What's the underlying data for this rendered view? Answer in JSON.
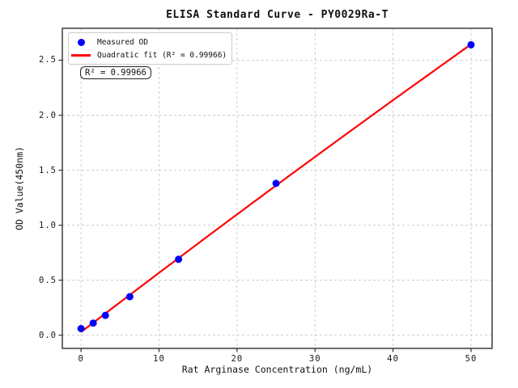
{
  "title": "ELISA Standard Curve - PY0029Ra-T",
  "axes": {
    "x_label": "Rat Arginase Concentration (ng/mL)",
    "y_label": "OD Value(450nm)",
    "x_tick_labels": [
      "0",
      "10",
      "20",
      "30",
      "40",
      "50"
    ],
    "y_tick_labels": [
      "0.0",
      "0.5",
      "1.0",
      "1.5",
      "2.0",
      "2.5"
    ]
  },
  "legend": {
    "items": [
      {
        "label": "Measured OD",
        "marker": "dot",
        "color": "#0000ff"
      },
      {
        "label": "Quadratic fit (R² = 0.99966)",
        "marker": "line",
        "color": "#ff0000"
      }
    ]
  },
  "annotation": {
    "r_squared_text": "R² = 0.99966"
  },
  "colors": {
    "point": "#0000ff",
    "fit_line": "#ff0000",
    "grid": "#c9c9c9",
    "spine": "#2e2e2e",
    "text": "#1a1a1a"
  },
  "chart_data": {
    "type": "scatter",
    "title": "ELISA Standard Curve - PY0029Ra-T",
    "xlabel": "Rat Arginase Concentration (ng/mL)",
    "ylabel": "OD Value(450nm)",
    "x_ticks": [
      0,
      10,
      20,
      30,
      40,
      50
    ],
    "y_ticks": [
      0,
      0.5,
      1.0,
      1.5,
      2.0,
      2.5
    ],
    "xlim": [
      -2.4,
      52.7
    ],
    "ylim": [
      -0.12,
      2.79
    ],
    "grid": true,
    "grid_style": "dashed",
    "legend_position": "upper left",
    "series": [
      {
        "name": "Measured OD",
        "type": "scatter",
        "color": "#0000ff",
        "x": [
          0,
          1.56,
          3.12,
          6.25,
          12.5,
          25,
          50
        ],
        "y": [
          0.06,
          0.11,
          0.18,
          0.35,
          0.69,
          1.38,
          2.64
        ]
      },
      {
        "name": "Quadratic fit (R² = 0.99966)",
        "type": "line",
        "fit": "quadratic",
        "r_squared": 0.99966,
        "color": "#ff0000",
        "x_range": [
          0,
          50
        ]
      }
    ],
    "annotations": [
      {
        "text": "R² = 0.99966",
        "position": "below legend, upper left"
      }
    ]
  }
}
